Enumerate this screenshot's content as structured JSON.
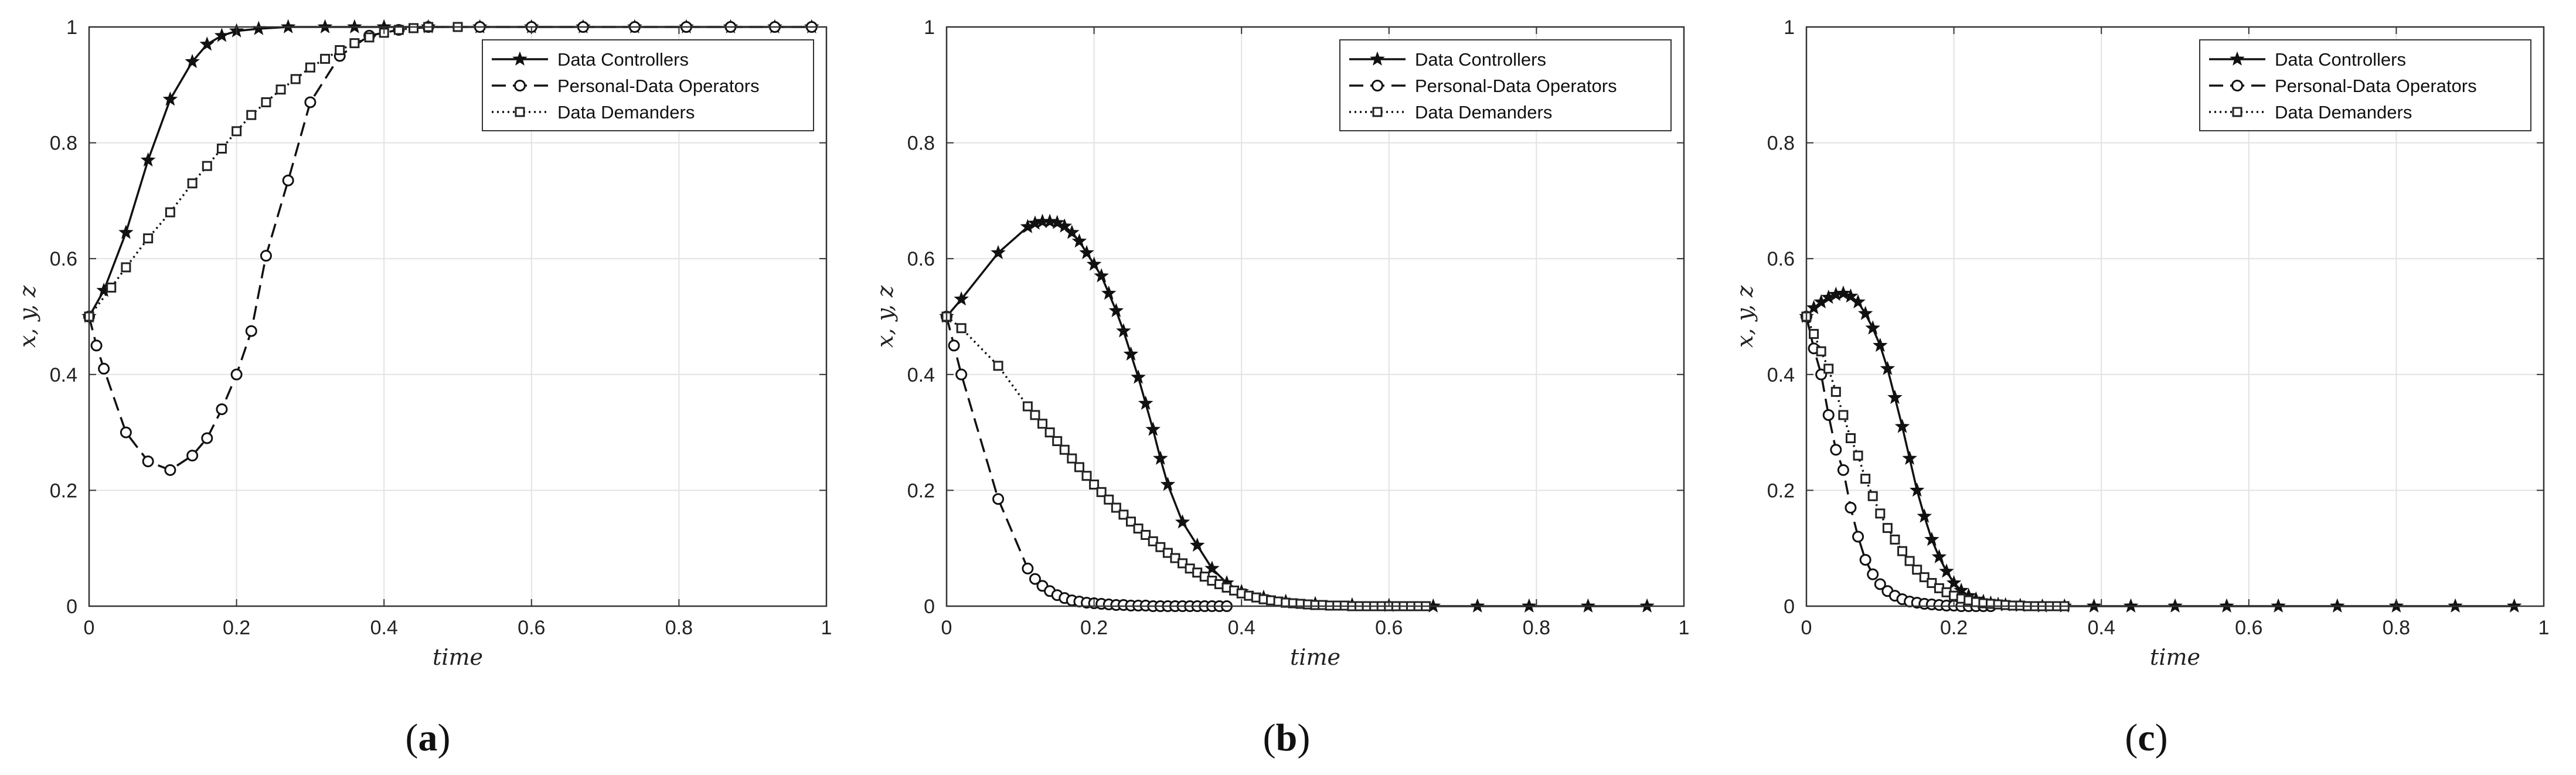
{
  "chart_data": [
    {
      "type": "line",
      "panel_label": "(a)",
      "panel_letter": "a",
      "xlabel": "time",
      "ylabel": "x, y, z",
      "xlim": [
        0,
        1
      ],
      "ylim": [
        0,
        1
      ],
      "xticks": [
        "0",
        "0.2",
        "0.4",
        "0.6",
        "0.8",
        "1"
      ],
      "yticks": [
        "0",
        "0.2",
        "0.4",
        "0.6",
        "0.8",
        "1"
      ],
      "grid": true,
      "legend_position": "top-right",
      "series": [
        {
          "name": "Data Controllers",
          "marker": "star",
          "line": "solid",
          "x": [
            0,
            0.02,
            0.05,
            0.08,
            0.11,
            0.14,
            0.16,
            0.18,
            0.2,
            0.23,
            0.27,
            0.32,
            0.36,
            0.4,
            0.46,
            0.53,
            0.6,
            0.67,
            0.74,
            0.81,
            0.87,
            0.93,
            0.98
          ],
          "y": [
            0.5,
            0.545,
            0.645,
            0.77,
            0.875,
            0.94,
            0.97,
            0.985,
            0.993,
            0.997,
            1,
            1,
            1,
            1,
            1,
            1,
            1,
            1,
            1,
            1,
            1,
            1,
            1
          ]
        },
        {
          "name": "Personal-Data Operators",
          "marker": "circle",
          "line": "dashed",
          "x": [
            0,
            0.01,
            0.02,
            0.05,
            0.08,
            0.11,
            0.14,
            0.16,
            0.18,
            0.2,
            0.22,
            0.24,
            0.27,
            0.3,
            0.34,
            0.38,
            0.42,
            0.46,
            0.53,
            0.6,
            0.67,
            0.74,
            0.81,
            0.87,
            0.93,
            0.98
          ],
          "y": [
            0.5,
            0.45,
            0.41,
            0.3,
            0.25,
            0.235,
            0.26,
            0.29,
            0.34,
            0.4,
            0.475,
            0.605,
            0.735,
            0.87,
            0.95,
            0.985,
            0.995,
            1,
            1,
            1,
            1,
            1,
            1,
            1,
            1,
            1
          ]
        },
        {
          "name": "Data Demanders",
          "marker": "square",
          "line": "dotted",
          "x": [
            0,
            0.03,
            0.05,
            0.08,
            0.11,
            0.14,
            0.16,
            0.18,
            0.2,
            0.22,
            0.24,
            0.26,
            0.28,
            0.3,
            0.32,
            0.34,
            0.36,
            0.38,
            0.4,
            0.42,
            0.44,
            0.46,
            0.5
          ],
          "y": [
            0.5,
            0.55,
            0.585,
            0.635,
            0.68,
            0.73,
            0.76,
            0.79,
            0.82,
            0.848,
            0.87,
            0.892,
            0.91,
            0.93,
            0.945,
            0.96,
            0.972,
            0.982,
            0.99,
            0.995,
            0.998,
            1,
            1
          ]
        }
      ]
    },
    {
      "type": "line",
      "panel_label": "(b)",
      "panel_letter": "b",
      "xlabel": "time",
      "ylabel": "x, y, z",
      "xlim": [
        0,
        1
      ],
      "ylim": [
        0,
        1
      ],
      "xticks": [
        "0",
        "0.2",
        "0.4",
        "0.6",
        "0.8",
        "1"
      ],
      "yticks": [
        "0",
        "0.2",
        "0.4",
        "0.6",
        "0.8",
        "1"
      ],
      "grid": true,
      "legend_position": "top-right",
      "series": [
        {
          "name": "Data Controllers",
          "marker": "star",
          "line": "solid",
          "x": [
            0,
            0.02,
            0.07,
            0.11,
            0.12,
            0.13,
            0.14,
            0.15,
            0.16,
            0.17,
            0.18,
            0.19,
            0.2,
            0.21,
            0.22,
            0.23,
            0.24,
            0.25,
            0.26,
            0.27,
            0.28,
            0.29,
            0.3,
            0.32,
            0.34,
            0.36,
            0.38,
            0.4,
            0.43,
            0.46,
            0.5,
            0.55,
            0.6,
            0.66,
            0.72,
            0.79,
            0.87,
            0.95
          ],
          "y": [
            0.5,
            0.53,
            0.61,
            0.655,
            0.661,
            0.664,
            0.664,
            0.662,
            0.656,
            0.645,
            0.63,
            0.61,
            0.59,
            0.57,
            0.54,
            0.51,
            0.475,
            0.435,
            0.395,
            0.35,
            0.305,
            0.255,
            0.21,
            0.145,
            0.105,
            0.065,
            0.04,
            0.025,
            0.015,
            0.008,
            0.004,
            0.002,
            0.001,
            0,
            0,
            0,
            0,
            0
          ]
        },
        {
          "name": "Personal-Data Operators",
          "marker": "circle",
          "line": "dashed",
          "x": [
            0,
            0.01,
            0.02,
            0.07,
            0.11,
            0.12,
            0.13,
            0.14,
            0.15,
            0.16,
            0.17,
            0.18,
            0.19,
            0.2,
            0.21,
            0.22,
            0.23,
            0.24,
            0.25,
            0.26,
            0.27,
            0.28,
            0.29,
            0.3,
            0.31,
            0.32,
            0.33,
            0.34,
            0.35,
            0.36,
            0.37,
            0.38
          ],
          "y": [
            0.5,
            0.45,
            0.4,
            0.185,
            0.065,
            0.047,
            0.035,
            0.026,
            0.019,
            0.014,
            0.01,
            0.008,
            0.006,
            0.005,
            0.004,
            0.003,
            0.002,
            0.002,
            0.001,
            0.001,
            0.001,
            0,
            0,
            0,
            0,
            0,
            0,
            0,
            0,
            0,
            0,
            0
          ]
        },
        {
          "name": "Data Demanders",
          "marker": "square",
          "line": "dotted",
          "x": [
            0,
            0.02,
            0.07,
            0.11,
            0.12,
            0.13,
            0.14,
            0.15,
            0.16,
            0.17,
            0.18,
            0.19,
            0.2,
            0.21,
            0.22,
            0.23,
            0.24,
            0.25,
            0.26,
            0.27,
            0.28,
            0.29,
            0.3,
            0.31,
            0.32,
            0.33,
            0.34,
            0.35,
            0.36,
            0.37,
            0.38,
            0.39,
            0.4,
            0.41,
            0.42,
            0.43,
            0.44,
            0.45,
            0.46,
            0.47,
            0.48,
            0.49,
            0.5,
            0.51,
            0.52,
            0.53,
            0.54,
            0.55,
            0.56,
            0.57,
            0.58,
            0.59,
            0.6,
            0.61,
            0.62,
            0.63,
            0.64,
            0.65
          ],
          "y": [
            0.5,
            0.48,
            0.415,
            0.345,
            0.33,
            0.315,
            0.3,
            0.285,
            0.27,
            0.255,
            0.24,
            0.225,
            0.21,
            0.197,
            0.184,
            0.17,
            0.158,
            0.146,
            0.134,
            0.123,
            0.112,
            0.102,
            0.092,
            0.083,
            0.074,
            0.065,
            0.058,
            0.051,
            0.044,
            0.038,
            0.032,
            0.027,
            0.022,
            0.018,
            0.015,
            0.012,
            0.01,
            0.008,
            0.006,
            0.005,
            0.004,
            0.003,
            0.002,
            0.002,
            0.001,
            0.001,
            0.001,
            0,
            0,
            0,
            0,
            0,
            0,
            0,
            0,
            0,
            0,
            0
          ]
        }
      ]
    },
    {
      "type": "line",
      "panel_label": "(c)",
      "panel_letter": "c",
      "xlabel": "time",
      "ylabel": "x, y, z",
      "xlim": [
        0,
        1
      ],
      "ylim": [
        0,
        1
      ],
      "xticks": [
        "0",
        "0.2",
        "0.4",
        "0.6",
        "0.8",
        "1"
      ],
      "yticks": [
        "0",
        "0.2",
        "0.4",
        "0.6",
        "0.8",
        "1"
      ],
      "grid": true,
      "legend_position": "top-right",
      "series": [
        {
          "name": "Data Controllers",
          "marker": "star",
          "line": "solid",
          "x": [
            0,
            0.01,
            0.02,
            0.03,
            0.04,
            0.05,
            0.06,
            0.07,
            0.08,
            0.09,
            0.1,
            0.11,
            0.12,
            0.13,
            0.14,
            0.15,
            0.16,
            0.17,
            0.18,
            0.19,
            0.2,
            0.21,
            0.22,
            0.23,
            0.24,
            0.25,
            0.26,
            0.27,
            0.29,
            0.32,
            0.35,
            0.39,
            0.44,
            0.5,
            0.57,
            0.64,
            0.72,
            0.8,
            0.88,
            0.96
          ],
          "y": [
            0.5,
            0.515,
            0.525,
            0.533,
            0.538,
            0.54,
            0.535,
            0.525,
            0.505,
            0.48,
            0.45,
            0.41,
            0.36,
            0.31,
            0.255,
            0.2,
            0.155,
            0.115,
            0.085,
            0.06,
            0.04,
            0.027,
            0.018,
            0.012,
            0.008,
            0.005,
            0.003,
            0.002,
            0.001,
            0,
            0,
            0,
            0,
            0,
            0,
            0,
            0,
            0,
            0,
            0
          ]
        },
        {
          "name": "Personal-Data Operators",
          "marker": "circle",
          "line": "dashed",
          "x": [
            0,
            0.01,
            0.02,
            0.03,
            0.04,
            0.05,
            0.06,
            0.07,
            0.08,
            0.09,
            0.1,
            0.11,
            0.12,
            0.13,
            0.14,
            0.15,
            0.16,
            0.17,
            0.18,
            0.19,
            0.2,
            0.21,
            0.22,
            0.23,
            0.24,
            0.25
          ],
          "y": [
            0.5,
            0.445,
            0.4,
            0.33,
            0.27,
            0.235,
            0.17,
            0.12,
            0.08,
            0.055,
            0.038,
            0.026,
            0.018,
            0.012,
            0.008,
            0.006,
            0.004,
            0.003,
            0.002,
            0.001,
            0.001,
            0,
            0,
            0,
            0,
            0
          ]
        },
        {
          "name": "Data Demanders",
          "marker": "square",
          "line": "dotted",
          "x": [
            0,
            0.01,
            0.02,
            0.03,
            0.04,
            0.05,
            0.06,
            0.07,
            0.08,
            0.09,
            0.1,
            0.11,
            0.12,
            0.13,
            0.14,
            0.15,
            0.16,
            0.17,
            0.18,
            0.19,
            0.2,
            0.21,
            0.22,
            0.23,
            0.24,
            0.25,
            0.26,
            0.27,
            0.28,
            0.29,
            0.3,
            0.31,
            0.32,
            0.33,
            0.34,
            0.35
          ],
          "y": [
            0.5,
            0.47,
            0.44,
            0.41,
            0.37,
            0.33,
            0.29,
            0.26,
            0.22,
            0.19,
            0.16,
            0.135,
            0.115,
            0.095,
            0.078,
            0.063,
            0.05,
            0.04,
            0.031,
            0.024,
            0.018,
            0.013,
            0.01,
            0.007,
            0.005,
            0.004,
            0.003,
            0.002,
            0.001,
            0.001,
            0,
            0,
            0,
            0,
            0,
            0
          ]
        }
      ]
    }
  ]
}
